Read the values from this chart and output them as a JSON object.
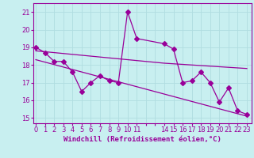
{
  "xlabel": "Windchill (Refroidissement éolien,°C)",
  "ylabel_ticks": [
    15,
    16,
    17,
    18,
    19,
    20,
    21
  ],
  "xticks_shown": [
    0,
    1,
    2,
    3,
    4,
    5,
    6,
    7,
    8,
    9,
    10,
    11,
    14,
    15,
    16,
    17,
    18,
    19,
    20,
    21,
    22,
    23
  ],
  "xlim": [
    -0.3,
    23.5
  ],
  "ylim": [
    14.7,
    21.5
  ],
  "bg_color": "#c8eff0",
  "line_color": "#990099",
  "grid_color": "#b0dde0",
  "curve1_x": [
    0,
    1,
    2,
    3,
    4,
    5,
    6,
    7,
    8,
    9,
    10,
    11,
    14,
    15,
    16,
    17,
    18,
    19,
    20,
    21,
    22,
    23
  ],
  "curve1_y": [
    19.0,
    18.7,
    18.2,
    18.2,
    17.6,
    16.5,
    17.0,
    17.4,
    17.1,
    17.0,
    21.0,
    19.5,
    19.2,
    18.9,
    17.0,
    17.1,
    17.6,
    17.0,
    15.9,
    16.7,
    15.4,
    15.2
  ],
  "curve2_x": [
    0,
    1,
    2,
    3,
    4,
    5,
    6,
    7,
    8,
    9,
    10,
    11,
    14,
    17,
    23
  ],
  "curve2_y": [
    18.8,
    18.75,
    18.7,
    18.65,
    18.6,
    18.55,
    18.5,
    18.45,
    18.4,
    18.35,
    18.3,
    18.25,
    18.1,
    18.0,
    17.8
  ],
  "curve3_x": [
    0,
    23
  ],
  "curve3_y": [
    18.3,
    15.1
  ],
  "marker": "D",
  "markersize": 3,
  "font_size_ticks": 6,
  "font_size_xlabel": 6.5
}
